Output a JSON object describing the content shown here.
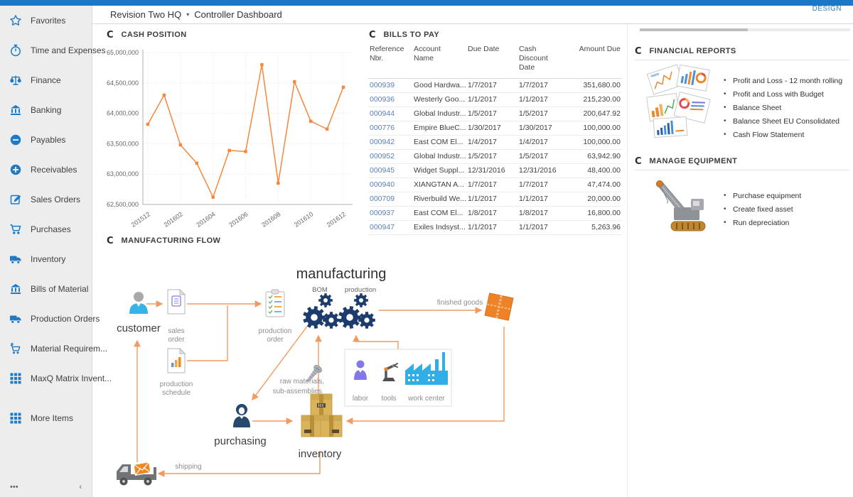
{
  "header": {
    "company": "Revision Two HQ",
    "caret": "▾",
    "page_title": "Controller Dashboard",
    "design_label": "DESIGN"
  },
  "sidebar": {
    "items": [
      {
        "label": "Favorites",
        "icon": "star"
      },
      {
        "label": "Time and Expenses",
        "icon": "stopwatch"
      },
      {
        "label": "Finance",
        "icon": "scales"
      },
      {
        "label": "Banking",
        "icon": "bank"
      },
      {
        "label": "Payables",
        "icon": "minus"
      },
      {
        "label": "Receivables",
        "icon": "plus"
      },
      {
        "label": "Sales Orders",
        "icon": "edit"
      },
      {
        "label": "Purchases",
        "icon": "cart"
      },
      {
        "label": "Inventory",
        "icon": "truck"
      },
      {
        "label": "Bills of Material",
        "icon": "bank"
      },
      {
        "label": "Production Orders",
        "icon": "truck"
      },
      {
        "label": "Material Requirem...",
        "icon": "cartplus"
      },
      {
        "label": "MaxQ Matrix Invent...",
        "icon": "grid"
      },
      {
        "label": "More Items",
        "icon": "grid"
      }
    ],
    "footer_more": "•••",
    "footer_collapse": "‹"
  },
  "cash_position": {
    "title": "CASH POSITION",
    "refresh_glyph": "C"
  },
  "chart_data": {
    "type": "line",
    "title": "CASH POSITION",
    "x": [
      "201512",
      "201601",
      "201602",
      "201603",
      "201604",
      "201605",
      "201606",
      "201607",
      "201608",
      "201609",
      "201610",
      "201611",
      "201612"
    ],
    "values": [
      63820000,
      64300000,
      63480000,
      63180000,
      62620000,
      63390000,
      63370000,
      64800000,
      62850000,
      64520000,
      63870000,
      63740000,
      64430000
    ],
    "x_tick_labels": [
      "201512",
      "201602",
      "201604",
      "201606",
      "201608",
      "201610",
      "201612"
    ],
    "y_ticks": [
      62500000,
      63000000,
      63500000,
      64000000,
      64500000,
      65000000
    ],
    "ylim": [
      62500000,
      65000000
    ],
    "line_color": "#f6873c",
    "grid": true,
    "legend_position": "none"
  },
  "bills_to_pay": {
    "title": "BILLS TO PAY",
    "refresh_glyph": "C",
    "columns": [
      [
        "Reference",
        "Nbr."
      ],
      [
        "Account",
        "Name"
      ],
      [
        "Due Date"
      ],
      [
        "Cash",
        "Discount",
        "Date"
      ],
      [
        "Amount Due"
      ]
    ],
    "rows": [
      {
        "ref": "000939",
        "account": "Good Hardwa...",
        "due": "1/7/2017",
        "discount": "1/7/2017",
        "amount": "351,680.00"
      },
      {
        "ref": "000936",
        "account": "Westerly Goo...",
        "due": "1/1/2017",
        "discount": "1/1/2017",
        "amount": "215,230.00"
      },
      {
        "ref": "000944",
        "account": "Global Industr...",
        "due": "1/5/2017",
        "discount": "1/5/2017",
        "amount": "200,647.92"
      },
      {
        "ref": "000776",
        "account": "Empire BlueC...",
        "due": "1/30/2017",
        "discount": "1/30/2017",
        "amount": "100,000.00"
      },
      {
        "ref": "000942",
        "account": "East COM El...",
        "due": "1/4/2017",
        "discount": "1/4/2017",
        "amount": "100,000.00"
      },
      {
        "ref": "000952",
        "account": "Global Industr...",
        "due": "1/5/2017",
        "discount": "1/5/2017",
        "amount": "63,942.90"
      },
      {
        "ref": "000945",
        "account": "Widget Suppl...",
        "due": "12/31/2016",
        "discount": "12/31/2016",
        "amount": "48,400.00"
      },
      {
        "ref": "000940",
        "account": "XIANGTAN A...",
        "due": "1/7/2017",
        "discount": "1/7/2017",
        "amount": "47,474.00"
      },
      {
        "ref": "000709",
        "account": "Riverbuild We...",
        "due": "1/1/2017",
        "discount": "1/1/2017",
        "amount": "20,000.00"
      },
      {
        "ref": "000937",
        "account": "East COM El...",
        "due": "1/8/2017",
        "discount": "1/8/2017",
        "amount": "16,800.00"
      },
      {
        "ref": "000947",
        "account": "Exiles Indsyst...",
        "due": "1/1/2017",
        "discount": "1/1/2017",
        "amount": "5,263.96"
      }
    ]
  },
  "financial_reports": {
    "title": "FINANCIAL REPORTS",
    "refresh_glyph": "C",
    "links": [
      "Profit and Loss - 12 month rolling",
      "Profit and Loss with Budget",
      "Balance Sheet",
      "Balance Sheet EU Consolidated",
      "Cash Flow Statement"
    ]
  },
  "manage_equipment": {
    "title": "MANAGE EQUIPMENT",
    "refresh_glyph": "C",
    "links": [
      "Purchase equipment",
      "Create fixed asset",
      "Run depreciation"
    ]
  },
  "manufacturing_flow": {
    "title": "MANUFACTURING FLOW",
    "refresh_glyph": "C",
    "labels": {
      "main_title": "manufacturing",
      "bom": "BOM",
      "production": "production",
      "customer": "customer",
      "sales_order_1": "sales",
      "sales_order_2": "order",
      "production_order_1": "production",
      "production_order_2": "order",
      "production_schedule_1": "production",
      "production_schedule_2": "schedule",
      "raw_materials_1": "raw materials,",
      "raw_materials_2": "sub-assemblies",
      "labor": "labor",
      "tools": "tools",
      "work_center": "work center",
      "finished_goods": "finished goods",
      "inventory": "inventory",
      "purchasing": "purchasing",
      "shipping": "shipping"
    }
  },
  "colors": {
    "topbar_blue": "#1a78c6",
    "sidebar_icon_blue": "#1f7ac6",
    "link_blue": "#5b7fb9",
    "chart_orange": "#f6873c",
    "arrow_orange": "#f19a62",
    "gear_navy": "#1c3c6e",
    "box_orange": "#ee8227",
    "carton_tan": "#d9b45c",
    "factory_blue": "#31aee6",
    "labor_purple": "#8278e8"
  }
}
